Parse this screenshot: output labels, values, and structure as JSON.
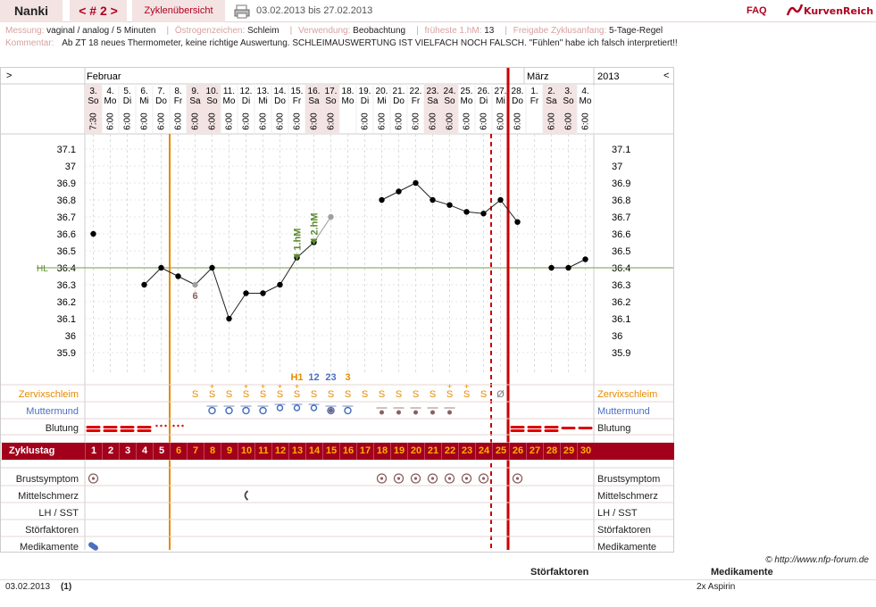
{
  "header": {
    "user": "Nanki",
    "cycle_nav": "< # 2 >",
    "overview": "Zyklenübersicht",
    "date_range": "03.02.2013 bis 27.02.2013",
    "faq": "FAQ",
    "logo": "KurvenReich",
    "print_icon": "printer-icon"
  },
  "info": {
    "messung_label": "Messung:",
    "messung": "vaginal / analog / 5 Minuten",
    "oestrogen_label": "Östrogenzeichen:",
    "oestrogen": "Schleim",
    "verwendung_label": "Verwendung:",
    "verwendung": "Beobachtung",
    "hm_label": "früheste 1.hM:",
    "hm": "13",
    "freigabe_label": "Freigabe Zyklusanfang:",
    "freigabe": "5-Tage-Regel",
    "kommentar_label": "Kommentar:",
    "kommentar": "Ab ZT 18 neues Thermometer, keine richtige Auswertung.  SCHLEIMAUSWERTUNG IST VIELFACH NOCH FALSCH. \"Fühlen\" habe ich falsch interpretiert!!"
  },
  "chart_top": {
    "left_arrow": ">",
    "right_arrow": "<",
    "month1": "Februar",
    "month2": "März",
    "year": "2013"
  },
  "days": [
    {
      "d": "3.",
      "wd": "So",
      "t": "7:30",
      "we": true
    },
    {
      "d": "4.",
      "wd": "Mo",
      "t": "6:00"
    },
    {
      "d": "5.",
      "wd": "Di",
      "t": "6:00"
    },
    {
      "d": "6.",
      "wd": "Mi",
      "t": "6:00"
    },
    {
      "d": "7.",
      "wd": "Do",
      "t": "6:00"
    },
    {
      "d": "8.",
      "wd": "Fr",
      "t": "6:00"
    },
    {
      "d": "9.",
      "wd": "Sa",
      "t": "6:00",
      "we": true
    },
    {
      "d": "10.",
      "wd": "So",
      "t": "6:00",
      "we": true
    },
    {
      "d": "11.",
      "wd": "Mo",
      "t": "6:00"
    },
    {
      "d": "12.",
      "wd": "Di",
      "t": "6:00"
    },
    {
      "d": "13.",
      "wd": "Mi",
      "t": "6:00"
    },
    {
      "d": "14.",
      "wd": "Do",
      "t": "6:00"
    },
    {
      "d": "15.",
      "wd": "Fr",
      "t": "6:00"
    },
    {
      "d": "16.",
      "wd": "Sa",
      "t": "6:00",
      "we": true
    },
    {
      "d": "17.",
      "wd": "So",
      "t": "6:00",
      "we": true
    },
    {
      "d": "18.",
      "wd": "Mo",
      "t": ""
    },
    {
      "d": "19.",
      "wd": "Di",
      "t": "6:00"
    },
    {
      "d": "20.",
      "wd": "Mi",
      "t": "6:00"
    },
    {
      "d": "21.",
      "wd": "Do",
      "t": "6:00"
    },
    {
      "d": "22.",
      "wd": "Fr",
      "t": "6:00"
    },
    {
      "d": "23.",
      "wd": "Sa",
      "t": "6:00",
      "we": true
    },
    {
      "d": "24.",
      "wd": "So",
      "t": "6:00",
      "we": true
    },
    {
      "d": "25.",
      "wd": "Mo",
      "t": "6:00"
    },
    {
      "d": "26.",
      "wd": "Di",
      "t": "6:00"
    },
    {
      "d": "27.",
      "wd": "Mi",
      "t": "6:00"
    },
    {
      "d": "28.",
      "wd": "Do",
      "t": "6:00"
    },
    {
      "d": "1.",
      "wd": "Fr",
      "t": ""
    },
    {
      "d": "2.",
      "wd": "Sa",
      "t": "6:00",
      "we": true
    },
    {
      "d": "3.",
      "wd": "So",
      "t": "6:00",
      "we": true
    },
    {
      "d": "4.",
      "wd": "Mo",
      "t": "6:00"
    }
  ],
  "temperature": {
    "y_ticks": [
      "37.1",
      "37",
      "36.9",
      "36.8",
      "36.7",
      "36.6",
      "36.5",
      "36.4",
      "36.3",
      "36.2",
      "36.1",
      "36",
      "35.9"
    ],
    "hl_label": "HL",
    "hl_value": 36.4,
    "values": [
      36.6,
      null,
      null,
      36.3,
      36.4,
      36.35,
      36.3,
      36.4,
      36.1,
      36.25,
      36.25,
      36.3,
      36.46,
      36.55,
      36.7,
      null,
      null,
      36.8,
      36.85,
      36.9,
      36.8,
      36.77,
      36.73,
      36.72,
      36.8,
      36.67,
      null,
      36.4,
      36.4,
      36.45
    ],
    "excluded_index": [
      6,
      14
    ],
    "below_label": "6",
    "hm1_label": "1.hM",
    "hm2_label": "2.hM"
  },
  "schleim_marks": {
    "h1": "H1",
    "n12": "12",
    "n23": "23",
    "n3": "3"
  },
  "rows": {
    "zervix": "Zervixschleim",
    "muttermund": "Muttermund",
    "blutung": "Blutung",
    "zyklustag": "Zyklustag",
    "brust": "Brustsymptom",
    "mittel": "Mittelschmerz",
    "lh": "LH / SST",
    "stoer": "Störfaktoren",
    "medi": "Medikamente"
  },
  "zervix_symbols": [
    "",
    "",
    "",
    "",
    "",
    "",
    "S",
    "S",
    "S",
    "S",
    "S",
    "S",
    "S",
    "S",
    "S",
    "S",
    "S",
    "S",
    "S",
    "S",
    "S",
    "S",
    "S",
    "S",
    "Ø",
    "",
    "",
    "",
    "",
    ""
  ],
  "zervix_plus": [
    false,
    false,
    false,
    false,
    false,
    false,
    false,
    true,
    false,
    true,
    true,
    true,
    true,
    false,
    false,
    false,
    false,
    false,
    false,
    false,
    false,
    true,
    true,
    false,
    false,
    false,
    false,
    false,
    false,
    false
  ],
  "cycle_days": [
    "1",
    "2",
    "3",
    "4",
    "5",
    "6",
    "7",
    "8",
    "9",
    "10",
    "11",
    "12",
    "13",
    "14",
    "15",
    "16",
    "17",
    "18",
    "19",
    "20",
    "21",
    "22",
    "23",
    "24",
    "25",
    "26",
    "27",
    "28",
    "29",
    "30"
  ],
  "copyright": "© http://www.nfp-forum.de",
  "footer": {
    "stoer_header": "Störfaktoren",
    "medi_header": "Medikamente",
    "date": "03.02.2013",
    "count": "(1)",
    "medi": "2x Aspirin"
  },
  "colors": {
    "accent": "#a3001b",
    "orange": "#e88a00",
    "blue": "#4a6fc0",
    "green": "#5a8a2a"
  }
}
